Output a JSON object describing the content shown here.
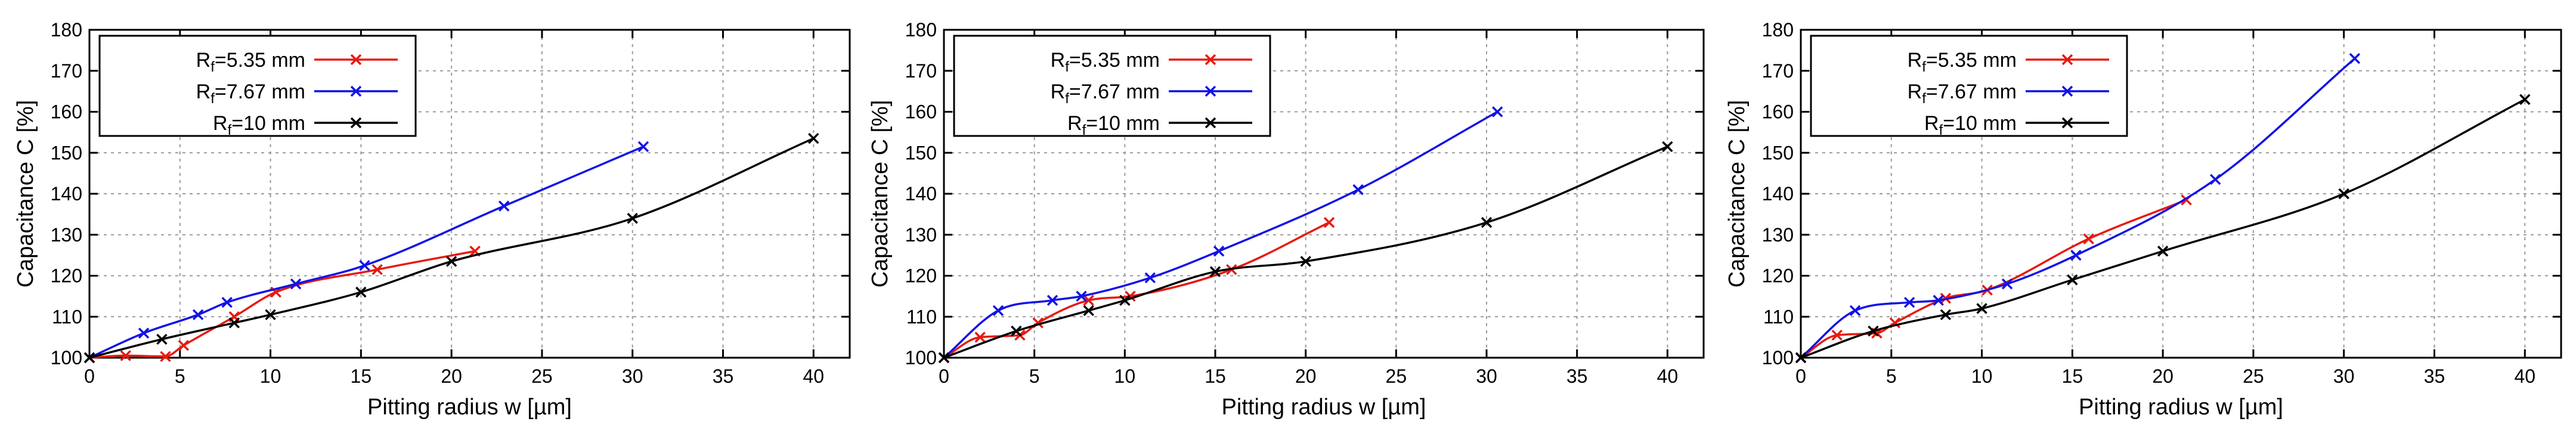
{
  "figure": {
    "colors": {
      "red": "#e8190f",
      "blue": "#1212e6",
      "black": "#000000",
      "grid": "#9a9a9a"
    }
  },
  "chart_data": [
    {
      "type": "line",
      "title": "",
      "xlabel": "Pitting radius w [µm]",
      "ylabel": "Capacitance C [%]",
      "xlim": [
        0,
        42
      ],
      "ylim": [
        100,
        180
      ],
      "xticks": [
        0,
        5,
        10,
        15,
        20,
        25,
        30,
        35,
        40
      ],
      "yticks": [
        100,
        110,
        120,
        130,
        140,
        150,
        160,
        170,
        180
      ],
      "grid": true,
      "legend_position": "top-left",
      "series": [
        {
          "name_main": "R",
          "name_sub": "f",
          "name_rest": "=5.35 mm",
          "color": "#e8190f",
          "x": [
            0,
            2,
            4.2,
            5.2,
            8,
            10.3,
            15.9,
            21.3
          ],
          "y": [
            100,
            100.5,
            100.3,
            103,
            110,
            116,
            121.5,
            126
          ]
        },
        {
          "name_main": "R",
          "name_sub": "f",
          "name_rest": "=7.67 mm",
          "color": "#1212e6",
          "x": [
            0,
            3,
            6,
            7.6,
            11.4,
            15.2,
            22.9,
            30.6
          ],
          "y": [
            100,
            106,
            110.5,
            113.5,
            118,
            122.5,
            137,
            151.5
          ]
        },
        {
          "name_main": "R",
          "name_sub": "f",
          "name_rest": "=10 mm",
          "color": "#000000",
          "x": [
            0,
            4,
            8,
            10,
            15,
            20,
            30,
            40
          ],
          "y": [
            100,
            104.5,
            108.5,
            110.5,
            116,
            123.5,
            134,
            153.5
          ]
        }
      ]
    },
    {
      "type": "line",
      "title": "",
      "xlabel": "Pitting radius w [µm]",
      "ylabel": "Capacitance C [%]",
      "xlim": [
        0,
        42
      ],
      "ylim": [
        100,
        180
      ],
      "xticks": [
        0,
        5,
        10,
        15,
        20,
        25,
        30,
        35,
        40
      ],
      "yticks": [
        100,
        110,
        120,
        130,
        140,
        150,
        160,
        170,
        180
      ],
      "grid": true,
      "legend_position": "top-left",
      "series": [
        {
          "name_main": "R",
          "name_sub": "f",
          "name_rest": "=5.35 mm",
          "color": "#e8190f",
          "x": [
            0,
            2,
            4.2,
            5.2,
            8,
            10.3,
            15.9,
            21.3
          ],
          "y": [
            100,
            105,
            105.5,
            108.5,
            114,
            115,
            121.5,
            133
          ]
        },
        {
          "name_main": "R",
          "name_sub": "f",
          "name_rest": "=7.67 mm",
          "color": "#1212e6",
          "x": [
            0,
            3,
            6,
            7.6,
            11.4,
            15.2,
            22.9,
            30.6
          ],
          "y": [
            100,
            111.5,
            114,
            115,
            119.5,
            126,
            141,
            160
          ]
        },
        {
          "name_main": "R",
          "name_sub": "f",
          "name_rest": "=10 mm",
          "color": "#000000",
          "x": [
            0,
            4,
            8,
            10,
            15,
            20,
            30,
            40
          ],
          "y": [
            100,
            106.5,
            111.5,
            114,
            121,
            123.5,
            133,
            151.5
          ]
        }
      ]
    },
    {
      "type": "line",
      "title": "",
      "xlabel": "Pitting radius w [µm]",
      "ylabel": "Capacitance C [%]",
      "xlim": [
        0,
        42
      ],
      "ylim": [
        100,
        180
      ],
      "xticks": [
        0,
        5,
        10,
        15,
        20,
        25,
        30,
        35,
        40
      ],
      "yticks": [
        100,
        110,
        120,
        130,
        140,
        150,
        160,
        170,
        180
      ],
      "grid": true,
      "legend_position": "top-left",
      "series": [
        {
          "name_main": "R",
          "name_sub": "f",
          "name_rest": "=5.35 mm",
          "color": "#e8190f",
          "x": [
            0,
            2,
            4.2,
            5.2,
            8,
            10.3,
            15.9,
            21.3
          ],
          "y": [
            100,
            105.5,
            106,
            108.5,
            114.5,
            116.5,
            129,
            138.5
          ]
        },
        {
          "name_main": "R",
          "name_sub": "f",
          "name_rest": "=7.67 mm",
          "color": "#1212e6",
          "x": [
            0,
            3,
            6,
            7.6,
            11.4,
            15.2,
            22.9,
            30.6
          ],
          "y": [
            100,
            111.5,
            113.5,
            114,
            118,
            125,
            143.5,
            173
          ]
        },
        {
          "name_main": "R",
          "name_sub": "f",
          "name_rest": "=10 mm",
          "color": "#000000",
          "x": [
            0,
            4,
            8,
            10,
            15,
            20,
            30,
            40
          ],
          "y": [
            100,
            106.5,
            110.5,
            112,
            119,
            126,
            140,
            163
          ]
        }
      ]
    }
  ]
}
